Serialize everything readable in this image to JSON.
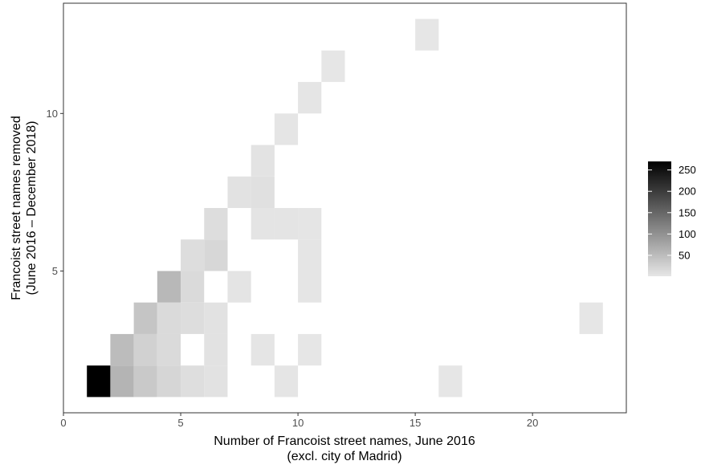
{
  "chart_data": {
    "type": "heatmap",
    "xlabel_lines": [
      "Number of Francoist street names, June 2016",
      "(excl. city of Madrid)"
    ],
    "ylabel_lines": [
      "Francoist street names removed",
      "(June 2016 – December 2018)"
    ],
    "xlim": [
      0,
      24
    ],
    "ylim": [
      0.5,
      13.5
    ],
    "x_ticks": [
      0,
      5,
      10,
      15,
      20
    ],
    "y_ticks": [
      5,
      10
    ],
    "bin_width": 1,
    "color_scale": {
      "min": 1,
      "max": 270,
      "low_color": "#e6e6e6",
      "high_color": "#000000"
    },
    "legend_ticks": [
      50,
      100,
      150,
      200,
      250
    ],
    "cells": [
      {
        "x": 1.5,
        "y": 1.5,
        "count": 270
      },
      {
        "x": 2.5,
        "y": 1.5,
        "count": 60
      },
      {
        "x": 3.5,
        "y": 1.5,
        "count": 35
      },
      {
        "x": 4.5,
        "y": 1.5,
        "count": 20
      },
      {
        "x": 5.5,
        "y": 1.5,
        "count": 10
      },
      {
        "x": 6.5,
        "y": 1.5,
        "count": 6
      },
      {
        "x": 9.5,
        "y": 1.5,
        "count": 2
      },
      {
        "x": 16.5,
        "y": 1.5,
        "count": 1
      },
      {
        "x": 2.5,
        "y": 2.5,
        "count": 50
      },
      {
        "x": 3.5,
        "y": 2.5,
        "count": 25
      },
      {
        "x": 4.5,
        "y": 2.5,
        "count": 15
      },
      {
        "x": 6.5,
        "y": 2.5,
        "count": 6
      },
      {
        "x": 8.5,
        "y": 2.5,
        "count": 2
      },
      {
        "x": 10.5,
        "y": 2.5,
        "count": 1
      },
      {
        "x": 3.5,
        "y": 3.5,
        "count": 40
      },
      {
        "x": 4.5,
        "y": 3.5,
        "count": 15
      },
      {
        "x": 5.5,
        "y": 3.5,
        "count": 12
      },
      {
        "x": 6.5,
        "y": 3.5,
        "count": 6
      },
      {
        "x": 22.5,
        "y": 3.5,
        "count": 1
      },
      {
        "x": 4.5,
        "y": 4.5,
        "count": 55
      },
      {
        "x": 5.5,
        "y": 4.5,
        "count": 15
      },
      {
        "x": 7.5,
        "y": 4.5,
        "count": 3
      },
      {
        "x": 10.5,
        "y": 4.5,
        "count": 2
      },
      {
        "x": 5.5,
        "y": 5.5,
        "count": 12
      },
      {
        "x": 6.5,
        "y": 5.5,
        "count": 18
      },
      {
        "x": 10.5,
        "y": 5.5,
        "count": 2
      },
      {
        "x": 6.5,
        "y": 6.5,
        "count": 12
      },
      {
        "x": 8.5,
        "y": 6.5,
        "count": 3
      },
      {
        "x": 9.5,
        "y": 6.5,
        "count": 3
      },
      {
        "x": 10.5,
        "y": 6.5,
        "count": 2
      },
      {
        "x": 7.5,
        "y": 7.5,
        "count": 6
      },
      {
        "x": 8.5,
        "y": 7.5,
        "count": 8
      },
      {
        "x": 8.5,
        "y": 8.5,
        "count": 4
      },
      {
        "x": 9.5,
        "y": 9.5,
        "count": 2
      },
      {
        "x": 10.5,
        "y": 10.5,
        "count": 2
      },
      {
        "x": 11.5,
        "y": 11.5,
        "count": 1
      },
      {
        "x": 15.5,
        "y": 12.5,
        "count": 1
      }
    ]
  }
}
